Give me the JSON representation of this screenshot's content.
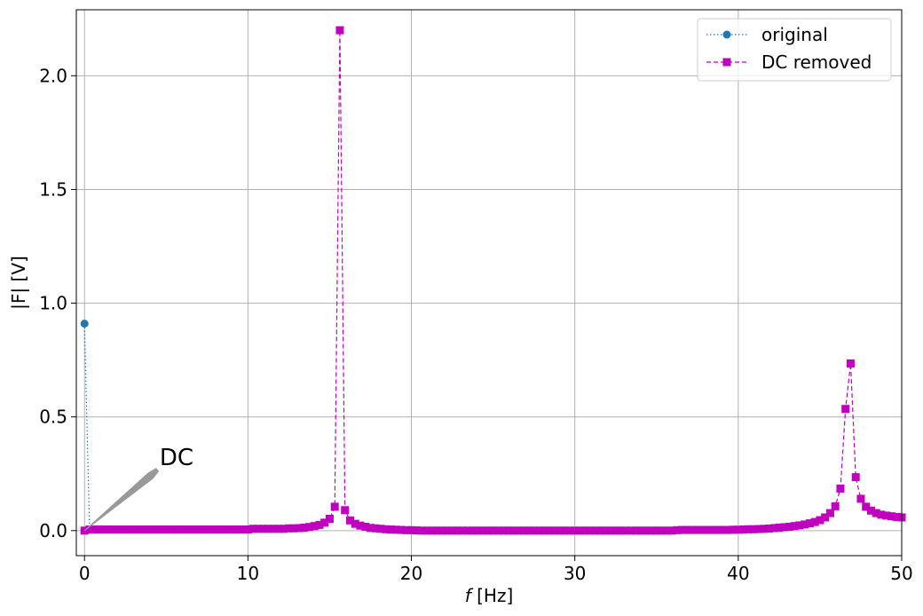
{
  "chart_data": {
    "type": "line",
    "xlabel_symbol": "f",
    "xlabel_unit": " [Hz]",
    "ylabel": "|F| [V]",
    "xlim": [
      -0.5,
      50
    ],
    "ylim": [
      -0.11,
      2.29
    ],
    "xticks": [
      0,
      10,
      20,
      30,
      40,
      50
    ],
    "yticks": [
      0.0,
      0.5,
      1.0,
      1.5,
      2.0
    ],
    "grid": true,
    "legend_position": "upper-right",
    "annotation": {
      "text": "DC",
      "point": [
        0,
        0
      ],
      "text_at": [
        4.6,
        0.32
      ]
    },
    "series": [
      {
        "name": "original",
        "color": "#1f77b4",
        "line": "dotted",
        "marker": "circle",
        "points": [
          [
            0.0,
            0.91
          ],
          [
            0.3125,
            0.0
          ]
        ]
      },
      {
        "name": "DC removed",
        "color": "#bf00bf",
        "line": "dashed",
        "marker": "square",
        "points": [
          [
            0.0,
            0.0
          ],
          [
            0.3125,
            0.005
          ],
          [
            0.625,
            0.005
          ],
          [
            0.9375,
            0.005
          ],
          [
            1.25,
            0.005
          ],
          [
            1.5625,
            0.005
          ],
          [
            1.875,
            0.005
          ],
          [
            2.1875,
            0.005
          ],
          [
            2.5,
            0.005
          ],
          [
            2.8125,
            0.005
          ],
          [
            3.125,
            0.005
          ],
          [
            3.4375,
            0.005
          ],
          [
            3.75,
            0.005
          ],
          [
            4.0625,
            0.005
          ],
          [
            4.375,
            0.005
          ],
          [
            4.6875,
            0.005
          ],
          [
            5.0,
            0.005
          ],
          [
            5.3125,
            0.005
          ],
          [
            5.625,
            0.005
          ],
          [
            5.9375,
            0.005
          ],
          [
            6.25,
            0.005
          ],
          [
            6.5625,
            0.005
          ],
          [
            6.875,
            0.005
          ],
          [
            7.1875,
            0.005
          ],
          [
            7.5,
            0.005
          ],
          [
            7.8125,
            0.005
          ],
          [
            8.125,
            0.005
          ],
          [
            8.4375,
            0.005
          ],
          [
            8.75,
            0.005
          ],
          [
            9.0625,
            0.005
          ],
          [
            9.375,
            0.005
          ],
          [
            9.6875,
            0.005
          ],
          [
            10.0,
            0.005
          ],
          [
            10.3125,
            0.008
          ],
          [
            10.625,
            0.008
          ],
          [
            10.9375,
            0.008
          ],
          [
            11.25,
            0.008
          ],
          [
            11.5625,
            0.008
          ],
          [
            11.875,
            0.008
          ],
          [
            12.1875,
            0.008
          ],
          [
            12.5,
            0.01
          ],
          [
            12.8125,
            0.01
          ],
          [
            13.125,
            0.011
          ],
          [
            13.4375,
            0.013
          ],
          [
            13.75,
            0.016
          ],
          [
            14.0625,
            0.02
          ],
          [
            14.375,
            0.025
          ],
          [
            14.6875,
            0.035
          ],
          [
            15.0,
            0.052
          ],
          [
            15.3125,
            0.105
          ],
          [
            15.625,
            2.2
          ],
          [
            15.9375,
            0.09
          ],
          [
            16.25,
            0.045
          ],
          [
            16.5625,
            0.03
          ],
          [
            16.875,
            0.022
          ],
          [
            17.1875,
            0.017
          ],
          [
            17.5,
            0.012
          ],
          [
            17.8125,
            0.01
          ],
          [
            18.125,
            0.008
          ],
          [
            18.4375,
            0.006
          ],
          [
            18.75,
            0.005
          ],
          [
            19.0625,
            0.004
          ],
          [
            19.375,
            0.003
          ],
          [
            19.6875,
            0.002
          ],
          [
            20.0,
            0.002
          ],
          [
            20.3125,
            0.001
          ],
          [
            20.625,
            0.0
          ],
          [
            20.9375,
            0.0
          ],
          [
            21.25,
            0.0
          ],
          [
            21.5625,
            0.0
          ],
          [
            21.875,
            0.0
          ],
          [
            22.1875,
            0.0
          ],
          [
            22.5,
            0.0
          ],
          [
            22.8125,
            0.0
          ],
          [
            23.125,
            0.0
          ],
          [
            23.4375,
            0.0
          ],
          [
            23.75,
            0.0
          ],
          [
            24.0625,
            0.0
          ],
          [
            24.375,
            0.0
          ],
          [
            24.6875,
            0.0
          ],
          [
            25.0,
            0.0
          ],
          [
            25.3125,
            0.0
          ],
          [
            25.625,
            0.0
          ],
          [
            25.9375,
            0.0
          ],
          [
            26.25,
            0.0
          ],
          [
            26.5625,
            0.0
          ],
          [
            26.875,
            0.0
          ],
          [
            27.1875,
            0.0
          ],
          [
            27.5,
            0.0
          ],
          [
            27.8125,
            0.0
          ],
          [
            28.125,
            0.0
          ],
          [
            28.4375,
            0.0
          ],
          [
            28.75,
            0.0
          ],
          [
            29.0625,
            0.0
          ],
          [
            29.375,
            0.0
          ],
          [
            29.6875,
            0.0
          ],
          [
            30.0,
            0.0
          ],
          [
            30.3125,
            0.0
          ],
          [
            30.625,
            0.0
          ],
          [
            30.9375,
            0.0
          ],
          [
            31.25,
            0.0
          ],
          [
            31.5625,
            0.0
          ],
          [
            31.875,
            0.0
          ],
          [
            32.1875,
            0.0
          ],
          [
            32.5,
            0.0
          ],
          [
            32.8125,
            0.0
          ],
          [
            33.125,
            0.0
          ],
          [
            33.4375,
            0.0
          ],
          [
            33.75,
            0.0
          ],
          [
            34.0625,
            0.0
          ],
          [
            34.375,
            0.0
          ],
          [
            34.6875,
            0.0
          ],
          [
            35.0,
            0.0
          ],
          [
            35.3125,
            0.0
          ],
          [
            35.625,
            0.0
          ],
          [
            35.9375,
            0.0
          ],
          [
            36.25,
            0.002
          ],
          [
            36.5625,
            0.003
          ],
          [
            36.875,
            0.003
          ],
          [
            37.1875,
            0.003
          ],
          [
            37.5,
            0.003
          ],
          [
            37.8125,
            0.003
          ],
          [
            38.125,
            0.003
          ],
          [
            38.4375,
            0.003
          ],
          [
            38.75,
            0.003
          ],
          [
            39.0625,
            0.003
          ],
          [
            39.375,
            0.003
          ],
          [
            39.6875,
            0.004
          ],
          [
            40.0,
            0.004
          ],
          [
            40.3125,
            0.005
          ],
          [
            40.625,
            0.006
          ],
          [
            40.9375,
            0.006
          ],
          [
            41.25,
            0.007
          ],
          [
            41.5625,
            0.008
          ],
          [
            41.875,
            0.009
          ],
          [
            42.1875,
            0.011
          ],
          [
            42.5,
            0.013
          ],
          [
            42.8125,
            0.015
          ],
          [
            43.125,
            0.017
          ],
          [
            43.4375,
            0.02
          ],
          [
            43.75,
            0.023
          ],
          [
            44.0625,
            0.027
          ],
          [
            44.375,
            0.032
          ],
          [
            44.6875,
            0.038
          ],
          [
            45.0,
            0.046
          ],
          [
            45.3125,
            0.058
          ],
          [
            45.625,
            0.077
          ],
          [
            45.9375,
            0.107
          ],
          [
            46.25,
            0.185
          ],
          [
            46.5625,
            0.535
          ],
          [
            46.875,
            0.735
          ],
          [
            47.1875,
            0.235
          ],
          [
            47.5,
            0.14
          ],
          [
            47.8125,
            0.105
          ],
          [
            48.125,
            0.088
          ],
          [
            48.4375,
            0.077
          ],
          [
            48.75,
            0.07
          ],
          [
            49.0625,
            0.066
          ],
          [
            49.375,
            0.063
          ],
          [
            49.6875,
            0.06
          ],
          [
            50.0,
            0.058
          ]
        ]
      }
    ]
  }
}
